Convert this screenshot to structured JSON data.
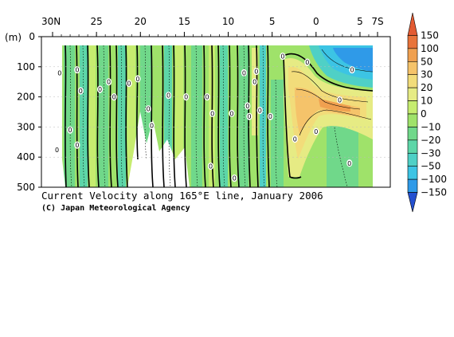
{
  "chart_data": {
    "type": "heatmap",
    "title": "Current Velocity along 165°E line, January 2006",
    "credit": "(C) Japan Meteorological Agency",
    "x_axis": {
      "ticks": [
        {
          "value": 30,
          "label": "30N"
        },
        {
          "value": 25,
          "label": "25"
        },
        {
          "value": 20,
          "label": "20"
        },
        {
          "value": 15,
          "label": "15"
        },
        {
          "value": 10,
          "label": "10"
        },
        {
          "value": 5,
          "label": "5"
        },
        {
          "value": 0,
          "label": "0"
        },
        {
          "value": -5,
          "label": "5"
        },
        {
          "value": -7,
          "label": "7S"
        }
      ],
      "range": [
        30,
        -7
      ]
    },
    "y_axis": {
      "unit_label": "(m)",
      "ticks": [
        {
          "value": 0,
          "label": "0"
        },
        {
          "value": 100,
          "label": "100"
        },
        {
          "value": 200,
          "label": "200"
        },
        {
          "value": 300,
          "label": "300"
        },
        {
          "value": 400,
          "label": "400"
        },
        {
          "value": 500,
          "label": "500"
        }
      ],
      "range": [
        0,
        500
      ]
    },
    "colorbar": {
      "levels": [
        {
          "label": "150",
          "color": "#e8733a"
        },
        {
          "label": "100",
          "color": "#f0a050"
        },
        {
          "label": "50",
          "color": "#f5c36a"
        },
        {
          "label": "30",
          "color": "#f2dc7a"
        },
        {
          "label": "20",
          "color": "#e6eb84"
        },
        {
          "label": "10",
          "color": "#c6ec6f"
        },
        {
          "label": "0",
          "color": "#9fe26a"
        },
        {
          "label": "−10",
          "color": "#70d88a"
        },
        {
          "label": "−20",
          "color": "#5dd6a8"
        },
        {
          "label": "−30",
          "color": "#4fd0c6"
        },
        {
          "label": "−50",
          "color": "#3cc4e4"
        },
        {
          "label": "−100",
          "color": "#2f9ae8"
        },
        {
          "label": "−150",
          "color": "#2a6ed8"
        }
      ],
      "top_color": "#e25a32",
      "bottom_color": "#2450d0"
    },
    "zero_label_text": "0",
    "zero_label_positions": [
      {
        "lat": 29.2,
        "depth": 120
      },
      {
        "lat": 27.2,
        "depth": 110
      },
      {
        "lat": 26.8,
        "depth": 180
      },
      {
        "lat": 28.0,
        "depth": 310
      },
      {
        "lat": 27.2,
        "depth": 360
      },
      {
        "lat": 29.5,
        "depth": 375
      },
      {
        "lat": 24.6,
        "depth": 175
      },
      {
        "lat": 23.6,
        "depth": 150
      },
      {
        "lat": 23.0,
        "depth": 200
      },
      {
        "lat": 21.3,
        "depth": 155
      },
      {
        "lat": 20.3,
        "depth": 140
      },
      {
        "lat": 19.1,
        "depth": 240
      },
      {
        "lat": 18.7,
        "depth": 295
      },
      {
        "lat": 16.8,
        "depth": 195
      },
      {
        "lat": 14.8,
        "depth": 200
      },
      {
        "lat": 12.4,
        "depth": 200
      },
      {
        "lat": 11.8,
        "depth": 255
      },
      {
        "lat": 12.0,
        "depth": 430
      },
      {
        "lat": 9.6,
        "depth": 255
      },
      {
        "lat": 9.3,
        "depth": 470
      },
      {
        "lat": 8.2,
        "depth": 120
      },
      {
        "lat": 7.8,
        "depth": 230
      },
      {
        "lat": 7.6,
        "depth": 265
      },
      {
        "lat": 7.0,
        "depth": 150
      },
      {
        "lat": 6.8,
        "depth": 115
      },
      {
        "lat": 6.4,
        "depth": 245
      },
      {
        "lat": 5.2,
        "depth": 265
      },
      {
        "lat": 3.8,
        "depth": 65
      },
      {
        "lat": 1.0,
        "depth": 85
      },
      {
        "lat": 2.4,
        "depth": 340
      },
      {
        "lat": 0.0,
        "depth": 315
      },
      {
        "lat": -2.7,
        "depth": 210
      },
      {
        "lat": -3.8,
        "depth": 420
      },
      {
        "lat": -4.1,
        "depth": 110
      }
    ]
  }
}
